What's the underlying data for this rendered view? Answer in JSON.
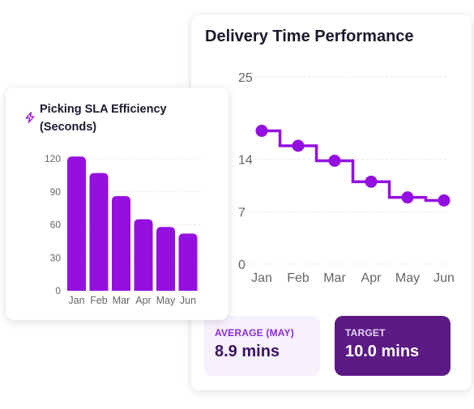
{
  "colors": {
    "accent": "#9410e0",
    "accent_dark": "#5c1a84",
    "avg_bg": "#f7f0fd",
    "axis_text": "#666666",
    "grid": "#e6e6e6"
  },
  "delivery_card": {
    "title": "Delivery Time Performance",
    "average": {
      "label": "AVERAGE (MAY)",
      "value": "8.9 mins"
    },
    "target": {
      "label": "TARGET",
      "value": "10.0 mins"
    }
  },
  "picking_card": {
    "icon": "lightning-bolt-icon",
    "title": "Picking SLA Efficiency (Seconds)"
  },
  "chart_data": [
    {
      "type": "line",
      "title": "Delivery Time Performance",
      "step": true,
      "x": [
        "Jan",
        "Feb",
        "Mar",
        "Apr",
        "May",
        "Jun"
      ],
      "values": [
        17.8,
        15.8,
        13.8,
        11.0,
        8.9,
        8.5
      ],
      "ylim": [
        0,
        25
      ],
      "yticks": [
        0,
        7,
        14,
        25
      ],
      "grid": true,
      "legend": "none"
    },
    {
      "type": "bar",
      "title": "Picking SLA Efficiency (Seconds)",
      "categories": [
        "Jan",
        "Feb",
        "Mar",
        "Apr",
        "May",
        "Jun"
      ],
      "values": [
        122,
        107,
        86,
        65,
        58,
        52
      ],
      "ylim": [
        0,
        120
      ],
      "yticks": [
        0,
        30,
        60,
        90,
        120
      ],
      "grid": true,
      "legend": "none"
    }
  ]
}
